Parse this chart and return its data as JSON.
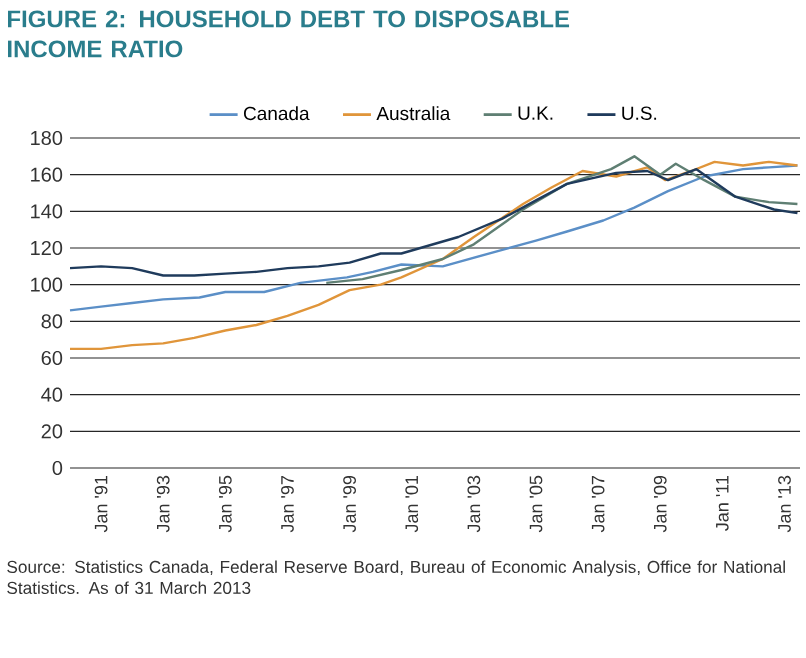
{
  "chart_data": {
    "type": "line",
    "title": "FIGURE 2: HOUSEHOLD DEBT TO DISPOSABLE INCOME RATIO",
    "annotations": [
      "Source: Statistics Canada, Federal Reserve Board, Bureau of Economic Analysis, Office for National Statistics. As of 31 March 2013"
    ],
    "series": [
      {
        "name": "Canada",
        "color": "#5b8fc7",
        "x": [
          "1990-01",
          "1991-01",
          "1992-01",
          "1993-01",
          "1994-03",
          "1995-01",
          "1996-04",
          "1997-06",
          "1998-12",
          "1999-10",
          "2000-09",
          "2002-01",
          "2003-12",
          "2005-01",
          "2006-01",
          "2007-03",
          "2008-03",
          "2009-04",
          "2010-06",
          "2011-09",
          "2012-07",
          "2013-06"
        ],
        "values": [
          86,
          88,
          90,
          92,
          93,
          96,
          96,
          101,
          104,
          107,
          111,
          110,
          119,
          124,
          129,
          135,
          142,
          151,
          159,
          163,
          164,
          165
        ]
      },
      {
        "name": "Australia",
        "color": "#e0953a",
        "x": [
          "1990-01",
          "1991-01",
          "1992-01",
          "1993-01",
          "1994-01",
          "1995-01",
          "1996-01",
          "1997-01",
          "1998-01",
          "1999-01",
          "2000-01",
          "2000-09",
          "2002-01",
          "2003-01",
          "2004-08",
          "2005-07",
          "2006-07",
          "2007-08",
          "2008-08",
          "2009-03",
          "2010-01",
          "2010-10",
          "2011-09",
          "2012-07",
          "2013-06"
        ],
        "values": [
          65,
          65,
          67,
          68,
          71,
          75,
          78,
          83,
          89,
          97,
          100,
          104,
          114,
          126,
          144,
          153,
          162,
          159,
          164,
          157,
          162,
          167,
          165,
          167,
          165
        ]
      },
      {
        "name": "U.K.",
        "color": "#5f7f73",
        "x": [
          "1998-04",
          "1999-06",
          "2000-09",
          "2002-01",
          "2003-01",
          "2004-08",
          "2006-01",
          "2007-06",
          "2008-03",
          "2009-01",
          "2009-07",
          "2010-06",
          "2011-06",
          "2012-07",
          "2013-06"
        ],
        "values": [
          101,
          103,
          108,
          114,
          122,
          141,
          155,
          163,
          170,
          160,
          166,
          157,
          148,
          145,
          144
        ]
      },
      {
        "name": "U.S.",
        "color": "#1f3b5c",
        "x": [
          "1990-01",
          "1991-01",
          "1992-01",
          "1993-01",
          "1994-01",
          "1995-01",
          "1996-01",
          "1997-01",
          "1998-01",
          "1999-01",
          "2000-01",
          "2000-09",
          "2002-07",
          "2003-12",
          "2005-01",
          "2006-01",
          "2007-08",
          "2008-08",
          "2009-04",
          "2010-03",
          "2011-06",
          "2012-09",
          "2013-06"
        ],
        "values": [
          109,
          110,
          109,
          105,
          105,
          106,
          107,
          109,
          110,
          112,
          117,
          117,
          126,
          136,
          146,
          155,
          161,
          162,
          157,
          163,
          148,
          141,
          139
        ]
      }
    ],
    "xlim": [
      "1990-01",
      "2013-07"
    ],
    "xticks": [
      {
        "value": "1991-01",
        "label": "Jan '91"
      },
      {
        "value": "1993-01",
        "label": "Jan '93"
      },
      {
        "value": "1995-01",
        "label": "Jan '95"
      },
      {
        "value": "1997-01",
        "label": "Jan '97"
      },
      {
        "value": "1999-01",
        "label": "Jan '99"
      },
      {
        "value": "2001-01",
        "label": "Jan '01"
      },
      {
        "value": "2003-01",
        "label": "Jan '03"
      },
      {
        "value": "2005-01",
        "label": "Jan '05"
      },
      {
        "value": "2007-01",
        "label": "Jan '07"
      },
      {
        "value": "2009-01",
        "label": "Jan '09"
      },
      {
        "value": "2011-01",
        "label": "Jan '11"
      },
      {
        "value": "2013-01",
        "label": "Jan '13"
      }
    ],
    "ylim": [
      0,
      180
    ],
    "yticks": [
      0,
      20,
      40,
      60,
      80,
      100,
      120,
      140,
      160,
      180
    ],
    "grid": "y",
    "legend": "top"
  }
}
